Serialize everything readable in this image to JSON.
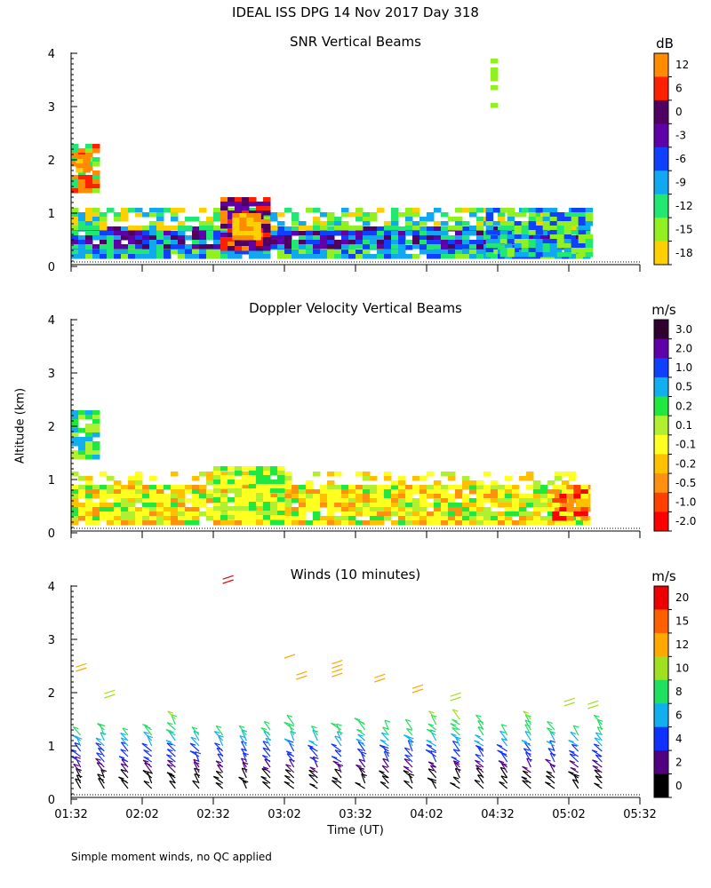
{
  "title": "IDEAL ISS DPG  14 Nov 2017 Day 318",
  "footnote": "Simple moment winds, no QC applied",
  "ylabel": "Altitude (km)",
  "xlabel": "Time (UT)",
  "panels": [
    {
      "title": "SNR Vertical Beams",
      "unit": "dB"
    },
    {
      "title": "Doppler Velocity Vertical Beams",
      "unit": "m/s"
    },
    {
      "title": "Winds (10 minutes)",
      "unit": "m/s"
    }
  ],
  "chart_data": [
    {
      "type": "heatmap",
      "title": "SNR Vertical Beams",
      "ylabel": "Altitude (km)",
      "ylim": [
        0,
        4
      ],
      "yticks": [
        "0",
        "1",
        "2",
        "3",
        "4"
      ],
      "colorbar_label": "dB",
      "colorbar_ticks": [
        "12",
        "6",
        "0",
        "-3",
        "-6",
        "-9",
        "-12",
        "-15",
        "-18"
      ],
      "colorbar_colors": [
        "#ff8c00",
        "#ff2000",
        "#500060",
        "#6000a8",
        "#1040ff",
        "#10a8f0",
        "#20e870",
        "#90f020",
        "#ffd000"
      ],
      "features": [
        {
          "time": "01:36",
          "altitude_km": [
            1.4,
            2.3
          ],
          "snr_db": 6
        },
        {
          "time": "02:45",
          "altitude_km": [
            0.3,
            1.3
          ],
          "snr_db": 6
        },
        {
          "time": "01:32-05:10",
          "altitude_km": [
            0.2,
            1.1
          ],
          "snr_db": -9
        }
      ]
    },
    {
      "type": "heatmap",
      "title": "Doppler Velocity Vertical Beams",
      "ylabel": "Altitude (km)",
      "ylim": [
        0,
        4
      ],
      "yticks": [
        "0",
        "1",
        "2",
        "3",
        "4"
      ],
      "colorbar_label": "m/s",
      "colorbar_ticks": [
        "3.0",
        "2.0",
        "1.0",
        "0.5",
        "0.2",
        "0.1",
        "-0.1",
        "-0.2",
        "-0.5",
        "-1.0",
        "-2.0"
      ],
      "colorbar_colors": [
        "#300030",
        "#6000a8",
        "#1040ff",
        "#10b0f0",
        "#20e840",
        "#b0f030",
        "#ffff20",
        "#ffc000",
        "#ff9010",
        "#ff4000",
        "#ff0000"
      ],
      "features": [
        {
          "time": "01:32-05:10",
          "altitude_km": [
            0.2,
            1.1
          ],
          "velocity_ms": -0.1
        },
        {
          "time": "01:36",
          "altitude_km": [
            1.4,
            2.3
          ],
          "velocity_ms": 0.5
        }
      ]
    },
    {
      "type": "wind_barbs",
      "title": "Winds (10 minutes)",
      "ylabel": "Altitude (km)",
      "xlabel": "Time (UT)",
      "ylim": [
        0,
        4
      ],
      "yticks": [
        "0",
        "1",
        "2",
        "3",
        "4"
      ],
      "xticks": [
        "01:32",
        "02:02",
        "02:32",
        "03:02",
        "03:32",
        "04:02",
        "04:32",
        "05:02",
        "05:32"
      ],
      "colorbar_label": "m/s",
      "colorbar_ticks": [
        "20",
        "15",
        "12",
        "10",
        "8",
        "6",
        "4",
        "2",
        "0"
      ],
      "colorbar_colors": [
        "#ee0000",
        "#ff6000",
        "#ffa800",
        "#a0e020",
        "#20e060",
        "#10b0f0",
        "#1030ff",
        "#500080",
        "#000000"
      ],
      "profile_times": [
        "01:36",
        "01:46",
        "01:56",
        "02:06",
        "02:16",
        "02:26",
        "02:36",
        "02:46",
        "02:56",
        "03:06",
        "03:16",
        "03:26",
        "03:36",
        "03:46",
        "03:56",
        "04:06",
        "04:16",
        "04:26",
        "04:36",
        "04:46",
        "04:56",
        "05:06",
        "05:16"
      ]
    }
  ]
}
